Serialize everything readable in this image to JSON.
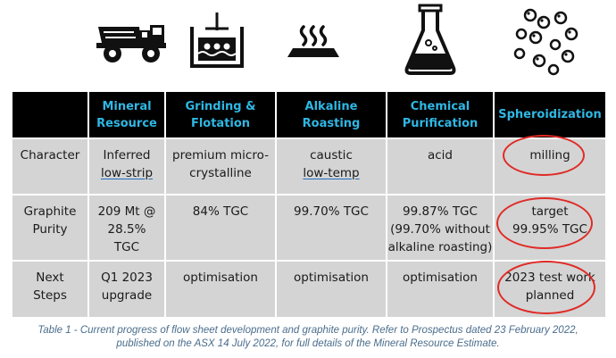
{
  "table": {
    "headers": [
      "",
      "Mineral Resource",
      "Grinding & Flotation",
      "Alkaline Roasting",
      "Chemical Purification",
      "Spheroidization"
    ],
    "rows": [
      {
        "label": "Character",
        "cells": [
          {
            "line1": "Inferred",
            "line2": "low-strip"
          },
          {
            "line1": "premium micro-",
            "line2": "crystalline"
          },
          {
            "line1": "caustic",
            "line2": "low-temp"
          },
          {
            "line1": "acid",
            "line2": ""
          },
          {
            "line1": "milling",
            "line2": ""
          }
        ]
      },
      {
        "label": "Graphite Purity",
        "cells": [
          {
            "line1": "209 Mt @",
            "line2": "28.5%",
            "line3": "TGC"
          },
          {
            "line1": "84% TGC"
          },
          {
            "line1": "99.70% TGC"
          },
          {
            "line1": "99.87% TGC",
            "line2": "(99.70% without",
            "line3": "alkaline roasting)"
          },
          {
            "line1": "target",
            "line2": "99.95% TGC"
          }
        ]
      },
      {
        "label": "Next Steps",
        "cells": [
          {
            "line1": "Q1 2023",
            "line2": "upgrade"
          },
          {
            "line1": "optimisation"
          },
          {
            "line1": "optimisation"
          },
          {
            "line1": "optimisation"
          },
          {
            "line1": "2023 test work",
            "line2": "planned"
          }
        ]
      }
    ]
  },
  "caption": {
    "line1": "Table 1 - Current progress of flow sheet development and graphite purity. Refer to Prospectus dated 23 February 2022,",
    "line2": "published on the ASX 14 July 2022, for full details of the Mineral Resource Estimate."
  },
  "icons": [
    "haul-truck-icon",
    "flotation-tank-icon",
    "roasting-heat-icon",
    "flask-icon",
    "spheres-icon"
  ],
  "colors": {
    "header_bg": "#000000",
    "header_text": "#2fb7e4",
    "cell_bg": "#d4d4d4",
    "highlight": "#e02a26",
    "caption": "#4a6d8c"
  }
}
